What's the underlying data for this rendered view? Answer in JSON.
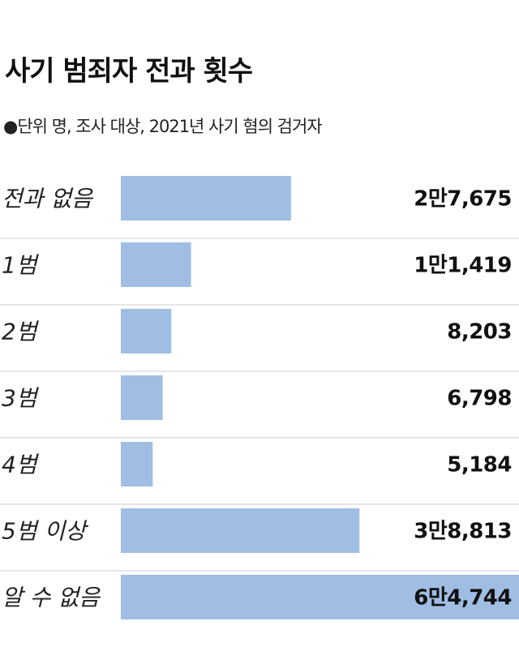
{
  "title": "사기 범죄자 전과 횟수",
  "subtitle": "●단위  명, 조사 대상, 2021년 사기 혐의 검거자",
  "colors": {
    "bar": "#a0bee3",
    "divider": "#cfcfcf",
    "text": "#111111"
  },
  "chart_data": {
    "type": "bar",
    "orientation": "horizontal",
    "title": "사기 범죄자 전과 횟수",
    "subtitle": "단위  명, 조사 대상, 2021년 사기 혐의 검거자",
    "categories": [
      "전과 없음",
      "1범",
      "2범",
      "3범",
      "4범",
      "5범 이상",
      "알 수 없음"
    ],
    "values": [
      27675,
      11419,
      8203,
      6798,
      5184,
      38813,
      64744
    ],
    "value_labels": [
      "2만7,675",
      "1만1,419",
      "8,203",
      "6,798",
      "5,184",
      "3만8,813",
      "6만4,744"
    ],
    "xlim": [
      0,
      64744
    ],
    "grid": false,
    "legend": "none"
  }
}
